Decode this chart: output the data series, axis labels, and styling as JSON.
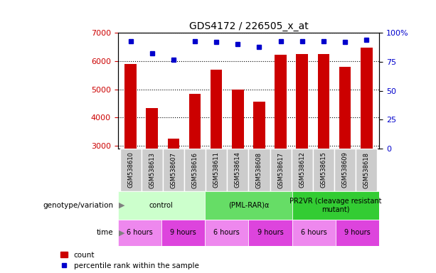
{
  "title": "GDS4172 / 226505_x_at",
  "samples": [
    "GSM538610",
    "GSM538613",
    "GSM538607",
    "GSM538616",
    "GSM538611",
    "GSM538614",
    "GSM538608",
    "GSM538617",
    "GSM538612",
    "GSM538615",
    "GSM538609",
    "GSM538618"
  ],
  "counts": [
    5900,
    4350,
    3270,
    4850,
    5700,
    5000,
    4560,
    6230,
    6260,
    6240,
    5800,
    6470
  ],
  "percentile_ranks": [
    93,
    82,
    77,
    93,
    92,
    90,
    88,
    93,
    93,
    93,
    92,
    94
  ],
  "ylim_left": [
    2900,
    7000
  ],
  "ylim_right": [
    0,
    100
  ],
  "yticks_left": [
    3000,
    4000,
    5000,
    6000,
    7000
  ],
  "yticks_right": [
    0,
    25,
    50,
    75,
    100
  ],
  "bar_color": "#cc0000",
  "dot_color": "#0000cc",
  "genotype_groups": [
    {
      "label": "control",
      "span": [
        0,
        4
      ],
      "color": "#ccffcc"
    },
    {
      "label": "(PML-RAR)α",
      "span": [
        4,
        8
      ],
      "color": "#66dd66"
    },
    {
      "label": "PR2VR (cleavage resistant\nmutant)",
      "span": [
        8,
        12
      ],
      "color": "#33cc33"
    }
  ],
  "time_groups": [
    {
      "label": "6 hours",
      "span": [
        0,
        2
      ],
      "color": "#ee88ee"
    },
    {
      "label": "9 hours",
      "span": [
        2,
        4
      ],
      "color": "#dd44dd"
    },
    {
      "label": "6 hours",
      "span": [
        4,
        6
      ],
      "color": "#ee88ee"
    },
    {
      "label": "9 hours",
      "span": [
        6,
        8
      ],
      "color": "#dd44dd"
    },
    {
      "label": "6 hours",
      "span": [
        8,
        10
      ],
      "color": "#ee88ee"
    },
    {
      "label": "9 hours",
      "span": [
        10,
        12
      ],
      "color": "#dd44dd"
    }
  ],
  "sample_bg_color": "#cccccc",
  "bar_color_red": "#cc0000",
  "dot_color_blue": "#0000cc",
  "label_color_left": "#cc0000",
  "label_color_right": "#0000cc"
}
